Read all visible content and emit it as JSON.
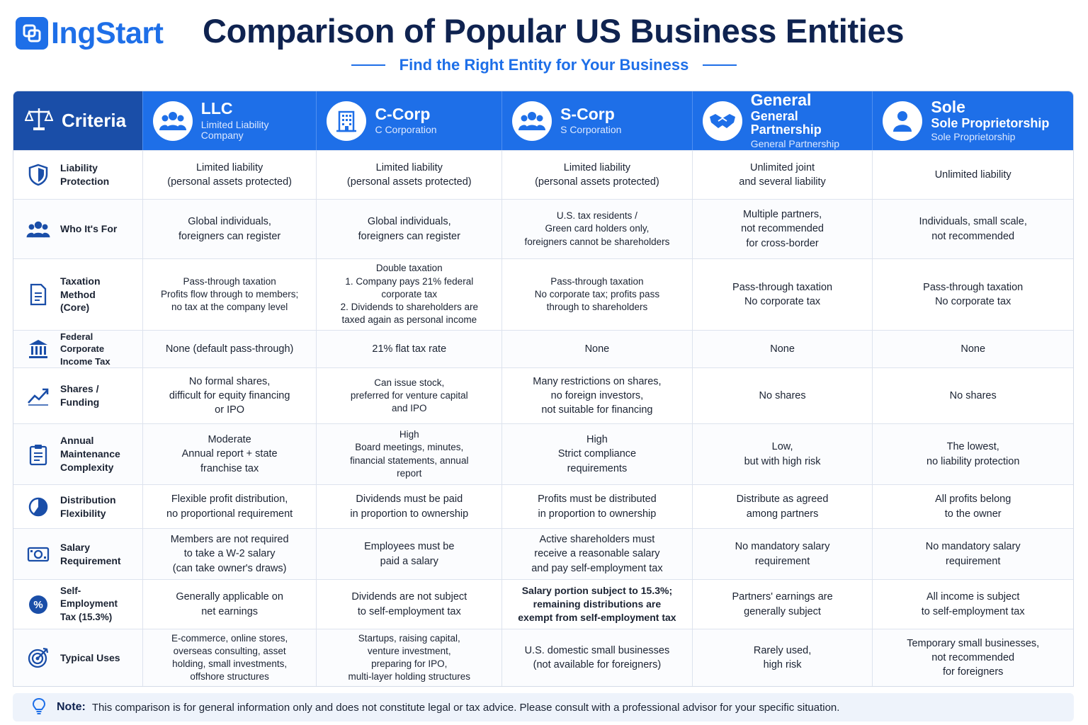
{
  "brand": {
    "name": "IngStart",
    "color": "#1e6fe8"
  },
  "header": {
    "title": "Comparison of Popular US Business Entities",
    "subtitle": "Find the Right Entity for Your Business"
  },
  "table": {
    "criteria_header": "Criteria",
    "entities": [
      {
        "name": "LLC",
        "subtitle": "Limited Liability\nCompany",
        "icon": "group-icon"
      },
      {
        "name": "C-Corp",
        "subtitle": "C Corporation",
        "icon": "building-icon"
      },
      {
        "name": "S-Corp",
        "subtitle": "S Corporation",
        "icon": "group-icon"
      },
      {
        "name": "General",
        "name2": "General Partnership",
        "subtitle": "General Partnership",
        "icon": "handshake-icon"
      },
      {
        "name": "Sole",
        "name2": "Sole Proprietorship",
        "subtitle": "Sole Proprietorship",
        "icon": "person-icon"
      }
    ],
    "rows": [
      {
        "criterion": "Liability\nProtection",
        "icon": "shield-icon",
        "values": [
          "Limited liability\n(personal assets protected)",
          "Limited liability\n(personal assets protected)",
          "Limited liability\n(personal assets protected)",
          "Unlimited joint\nand several liability",
          "Unlimited liability"
        ]
      },
      {
        "criterion": "Who It's For",
        "icon": "people-icon",
        "values": [
          "Global individuals,\nforeigners can register",
          "Global individuals,\nforeigners can register",
          "U.S. tax residents /\nGreen card holders only,\nforeigners cannot be shareholders",
          "Multiple partners,\nnot recommended\nfor cross-border",
          "Individuals, small scale,\nnot recommended"
        ]
      },
      {
        "criterion": "Taxation Method\n(Core)",
        "icon": "document-icon",
        "values": [
          "Pass-through taxation\nProfits flow through to members;\nno tax at the company level",
          "Double taxation\n1. Company pays 21% federal\ncorporate tax\n2. Dividends to shareholders are\ntaxed again as personal income",
          "Pass-through taxation\nNo corporate tax; profits pass\nthrough to shareholders",
          "Pass-through taxation\nNo corporate tax",
          "Pass-through taxation\nNo corporate tax"
        ]
      },
      {
        "criterion": "Federal Corporate\nIncome Tax",
        "icon": "bank-icon",
        "values": [
          "None (default pass-through)",
          "21% flat tax rate",
          "None",
          "None",
          "None"
        ]
      },
      {
        "criterion": "Shares / Funding",
        "icon": "trend-up-icon",
        "values": [
          "No formal shares,\ndifficult for equity financing\nor IPO",
          "Can issue stock,\npreferred for venture capital\nand IPO",
          "Many restrictions on shares,\nno foreign investors,\nnot suitable for financing",
          "No shares",
          "No shares"
        ]
      },
      {
        "criterion": "Annual\nMaintenance\nComplexity",
        "icon": "clipboard-icon",
        "values": [
          "Moderate\nAnnual report + state\nfranchise tax",
          "High\nBoard meetings, minutes,\nfinancial statements, annual\nreport",
          "High\nStrict compliance\nrequirements",
          "Low,\nbut with high risk",
          "The lowest,\nno liability protection"
        ]
      },
      {
        "criterion": "Distribution\nFlexibility",
        "icon": "pie-icon",
        "values": [
          "Flexible profit distribution,\nno proportional requirement",
          "Dividends must be paid\nin proportion to ownership",
          "Profits must be distributed\nin proportion to ownership",
          "Distribute as agreed\namong partners",
          "All profits belong\nto the owner"
        ]
      },
      {
        "criterion": "Salary\nRequirement",
        "icon": "cash-icon",
        "values": [
          "Members are not required\nto take a W-2 salary\n(can take owner's draws)",
          "Employees must be\npaid a salary",
          "Active shareholders must\nreceive a reasonable salary\nand pay self-employment tax",
          "No mandatory salary\nrequirement",
          "No mandatory salary\nrequirement"
        ]
      },
      {
        "criterion": "Self-Employment\nTax (15.3%)",
        "icon": "percent-icon",
        "values": [
          "Generally applicable on\nnet earnings",
          "Dividends are not subject\nto self-employment tax",
          "Salary portion subject to 15.3%;\nremaining distributions are\nexempt from self-employment tax",
          "Partners' earnings are\ngenerally subject",
          "All income is subject\nto self-employment tax"
        ]
      },
      {
        "criterion": "Typical Uses",
        "icon": "target-icon",
        "values": [
          "E-commerce, online stores,\noverseas consulting, asset\nholding, small investments,\noffshore structures",
          "Startups, raising capital,\nventure investment,\npreparing for IPO,\nmulti-layer holding structures",
          "U.S. domestic small businesses\n(not available for foreigners)",
          "Rarely used,\nhigh risk",
          "Temporary small businesses,\nnot recommended\nfor foreigners"
        ]
      }
    ]
  },
  "note": {
    "label": "Note:",
    "text": "This comparison is for general information only and does not constitute legal or tax advice. Please consult with a professional advisor for your specific situation.",
    "icon": "lightbulb-icon"
  }
}
